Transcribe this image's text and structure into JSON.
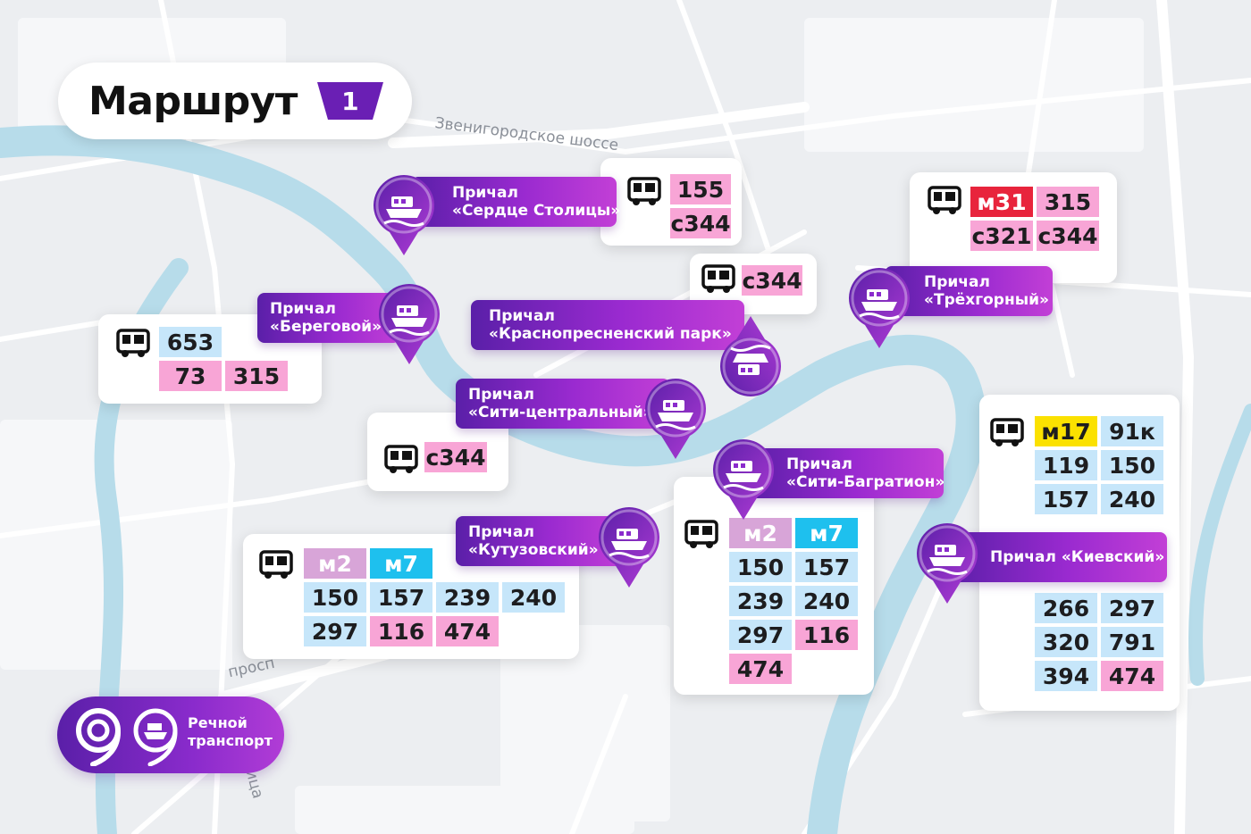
{
  "title": {
    "text": "Маршрут",
    "route_number": "1"
  },
  "road_labels": {
    "zvenigorodskoe": "Звенигородское шоссе",
    "prospekt": "просп",
    "ulitsa": "ица"
  },
  "piers": {
    "serdtse": {
      "line1": "Причал",
      "line2": "«Сердце Столицы»"
    },
    "beregovoy": {
      "line1": "Причал",
      "line2": "«Береговой»"
    },
    "krasnopresnensky": {
      "line1": "Причал",
      "line2": "«Краснопресненский парк»"
    },
    "trekhgorny": {
      "line1": "Причал",
      "line2": "«Трёхгорный»"
    },
    "siti_central": {
      "line1": "Причал",
      "line2": "«Сити-центральный»"
    },
    "kutuzovsky": {
      "line1": "Причал",
      "line2": "«Кутузовский»"
    },
    "siti_bagration": {
      "line1": "Причал",
      "line2": "«Сити-Багратион»"
    },
    "kievsky": {
      "line1": "Причал «Киевский»"
    }
  },
  "routes": {
    "serdtse": [
      "155",
      "с344"
    ],
    "single_c344_top": [
      "с344"
    ],
    "trekhgorny": [
      "м31",
      "315",
      "с321",
      "с344"
    ],
    "beregovoy": [
      "653",
      "73",
      "315"
    ],
    "siti_central": [
      "с344"
    ],
    "kutuzovsky": [
      "м2",
      "м7",
      "150",
      "157",
      "239",
      "240",
      "297",
      "116",
      "474"
    ],
    "bagration": [
      "м2",
      "м7",
      "150",
      "157",
      "239",
      "240",
      "297",
      "116",
      "474"
    ],
    "kievsky": [
      "м17",
      "91к",
      "119",
      "150",
      "157",
      "240",
      "266",
      "297",
      "320",
      "791",
      "394",
      "474"
    ]
  },
  "brand": {
    "line1": "Речной",
    "line2": "транспорт"
  },
  "colors": {
    "water": "#b7dcea",
    "card_blue": "#c6e6fa",
    "card_pink": "#f8a5d6",
    "metro_red": "#e8243c",
    "yellow": "#fbe100",
    "purple": "#7a25c0"
  }
}
